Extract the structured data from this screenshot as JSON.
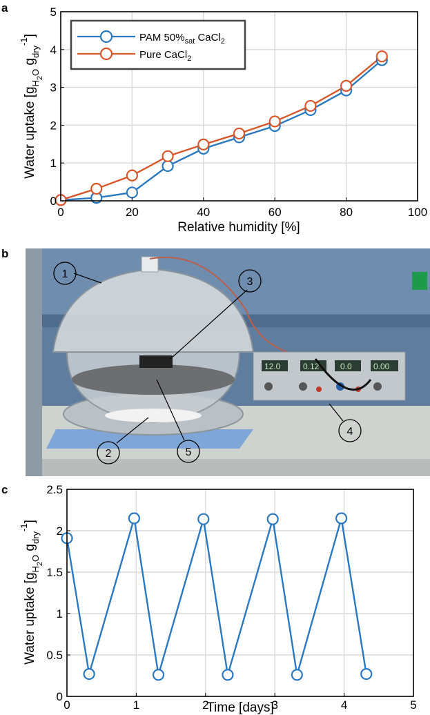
{
  "panels": {
    "a": "a",
    "b": "b",
    "c": "c"
  },
  "chart_data": [
    {
      "type": "line",
      "xlabel": "Relative humidity [%]",
      "ylabel": "Water uptake [g",
      "ylabel_parts": [
        "Water uptake [g",
        "H",
        "2",
        "O",
        " g",
        "dry",
        "-1",
        "]"
      ],
      "xlim": [
        0,
        100
      ],
      "ylim": [
        0,
        5
      ],
      "xticks": [
        0,
        20,
        40,
        60,
        80,
        100
      ],
      "yticks": [
        0,
        1,
        2,
        3,
        4,
        5
      ],
      "grid": true,
      "legend_position": "top-left",
      "series": [
        {
          "name": "PAM 50%sat CaCl2",
          "name_parts": [
            "PAM 50%",
            "sat",
            " CaCl",
            "2"
          ],
          "color": "#2a78c0",
          "x": [
            0,
            10,
            20,
            30,
            40,
            50,
            60,
            70,
            80,
            90
          ],
          "y": [
            0.02,
            0.08,
            0.22,
            0.92,
            1.38,
            1.68,
            1.98,
            2.4,
            2.92,
            3.72
          ]
        },
        {
          "name": "Pure CaCl2",
          "name_parts": [
            "Pure CaCl",
            "2"
          ],
          "color": "#d6572b",
          "x": [
            0,
            10,
            20,
            30,
            40,
            50,
            60,
            70,
            80,
            90
          ],
          "y": [
            0.02,
            0.32,
            0.67,
            1.18,
            1.49,
            1.78,
            2.1,
            2.51,
            3.04,
            3.82
          ]
        }
      ]
    },
    {
      "type": "line",
      "xlabel": "Time [days]",
      "ylabel": "Water uptake [g",
      "ylabel_parts": [
        "Water uptake [g",
        "H",
        "2",
        "O",
        " g",
        "dry",
        "-1",
        "]"
      ],
      "xlim": [
        0,
        5
      ],
      "ylim": [
        0,
        2.5
      ],
      "xticks": [
        0,
        1,
        2,
        3,
        4,
        5
      ],
      "yticks": [
        0,
        0.5,
        1,
        1.5,
        2,
        2.5
      ],
      "ytick_labels": [
        "0",
        "0.5",
        "1",
        "1.5",
        "2",
        "2.5"
      ],
      "grid": true,
      "series": [
        {
          "color": "#2a78c0",
          "x": [
            0,
            0.32,
            0.97,
            1.32,
            1.97,
            2.32,
            2.97,
            3.32,
            3.96,
            4.32
          ],
          "y": [
            1.91,
            0.27,
            2.15,
            0.26,
            2.14,
            0.26,
            2.14,
            0.26,
            2.15,
            0.27
          ]
        }
      ]
    }
  ],
  "photo": {
    "callouts": [
      "1",
      "2",
      "3",
      "4",
      "5"
    ],
    "display_readouts": [
      "12.0",
      "0.12",
      "0.0",
      "0.00"
    ],
    "colors": {
      "wall": "#5f7e9f",
      "shelf": "#cfd3d0",
      "pad": "#7ea6d6",
      "glass": "#c9ced2",
      "psu": "#c3c8cc"
    }
  }
}
